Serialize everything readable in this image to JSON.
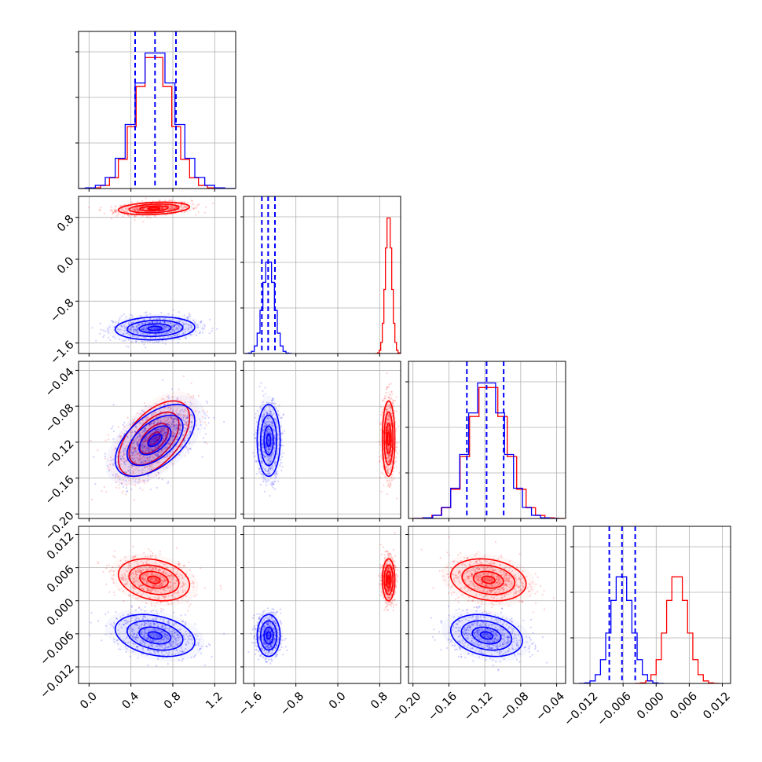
{
  "chart_data": {
    "type": "corner",
    "grid": true,
    "colors": {
      "series_a": "#0000ff",
      "series_b": "#ff0000"
    },
    "params": [
      {
        "range": [
          -0.1,
          1.4
        ],
        "ticks": [
          0.0,
          0.4,
          0.8,
          1.2
        ],
        "tick_labels": [
          "0.0",
          "0.4",
          "0.8",
          "1.2"
        ]
      },
      {
        "range": [
          -1.8,
          1.2
        ],
        "ticks": [
          -1.6,
          -0.8,
          0.0,
          0.8
        ],
        "tick_labels": [
          "−1.6",
          "−0.8",
          "0.0",
          "0.8"
        ]
      },
      {
        "range": [
          -0.205,
          -0.03
        ],
        "ticks": [
          -0.2,
          -0.16,
          -0.12,
          -0.08,
          -0.04
        ],
        "tick_labels": [
          "−0.20",
          "−0.16",
          "−0.12",
          "−0.08",
          "−0.04"
        ]
      },
      {
        "range": [
          -0.015,
          0.0135
        ],
        "ticks": [
          -0.012,
          -0.006,
          0.0,
          0.006,
          0.012
        ],
        "tick_labels": [
          "−0.012",
          "−0.006",
          "0.000",
          "0.006",
          "0.012"
        ]
      }
    ],
    "quantiles": {
      "series_a": [
        [
          0.44,
          0.63,
          0.83
        ],
        [
          -1.45,
          -1.33,
          -1.2
        ],
        [
          -0.14,
          -0.118,
          -0.099
        ],
        [
          -0.0085,
          -0.0062,
          -0.0038
        ]
      ]
    },
    "blobs": {
      "series_a": [
        {
          "mean": 0.63,
          "sd": 0.19
        },
        {
          "mean": -1.32,
          "sd": 0.11
        },
        {
          "mean": -0.118,
          "sd": 0.02
        },
        {
          "mean": -0.0063,
          "sd": 0.0019
        }
      ],
      "series_b": [
        {
          "mean": 0.62,
          "sd": 0.17
        },
        {
          "mean": 0.97,
          "sd": 0.06
        },
        {
          "mean": -0.116,
          "sd": 0.021
        },
        {
          "mean": 0.0038,
          "sd": 0.0019
        }
      ]
    },
    "correlations": {
      "series_a": {
        "1-0": 0.1,
        "2-0": 0.55,
        "2-1": 0.0,
        "3-0": -0.3,
        "3-1": 0.0,
        "3-2": -0.25
      },
      "series_b": {
        "1-0": 0.25,
        "2-0": 0.55,
        "2-1": 0.0,
        "3-0": -0.25,
        "3-1": 0.0,
        "3-2": -0.2
      }
    }
  }
}
